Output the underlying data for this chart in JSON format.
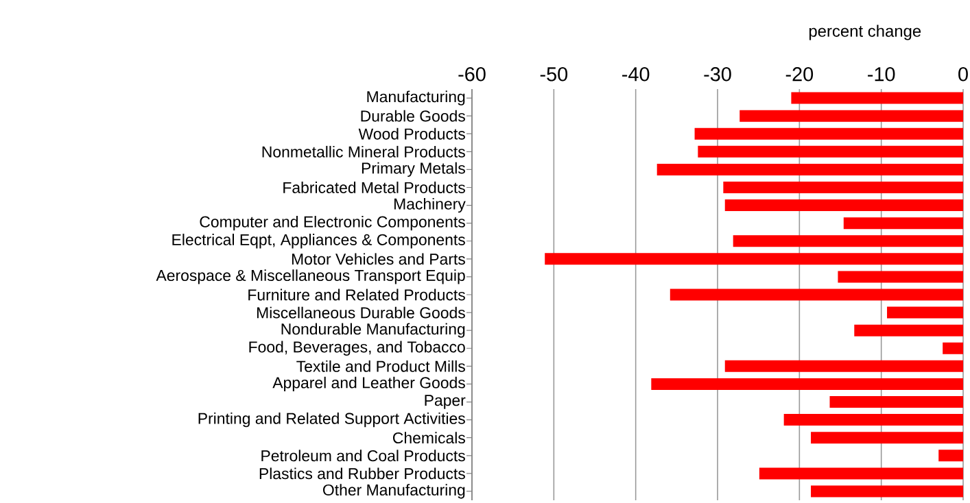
{
  "chart_data": {
    "type": "bar",
    "orientation": "horizontal",
    "xlabel": "percent change",
    "categories": [
      "Manufacturing",
      "Durable Goods",
      "Wood Products",
      "Nonmetallic Mineral Products",
      "Primary Metals",
      "Fabricated Metal Products",
      "Machinery",
      "Computer and Electronic Components",
      "Electrical Eqpt, Appliances & Components",
      "Motor Vehicles and Parts",
      "Aerospace & Miscellaneous Transport Equip",
      "Furniture and Related Products",
      "Miscellaneous Durable Goods",
      "Nondurable Manufacturing",
      "Food, Beverages, and Tobacco",
      "Textile and Product Mills",
      "Apparel and Leather Goods",
      "Paper",
      "Printing and Related Support Activities",
      "Chemicals",
      "Petroleum and Coal Products",
      "Plastics and Rubber Products",
      "Other Manufacturing"
    ],
    "values": [
      -21.0,
      -27.3,
      -32.8,
      -32.4,
      -37.4,
      -29.3,
      -29.1,
      -14.6,
      -28.1,
      -51.1,
      -15.3,
      -35.8,
      -9.3,
      -13.3,
      -2.5,
      -29.1,
      -38.1,
      -16.3,
      -21.9,
      -18.6,
      -3.0,
      -24.9,
      -18.6
    ],
    "color": "#ff0000",
    "xlim": [
      -60,
      0
    ],
    "xticks": [
      -60,
      -50,
      -40,
      -30,
      -20,
      -10,
      0
    ],
    "grid": "x"
  }
}
